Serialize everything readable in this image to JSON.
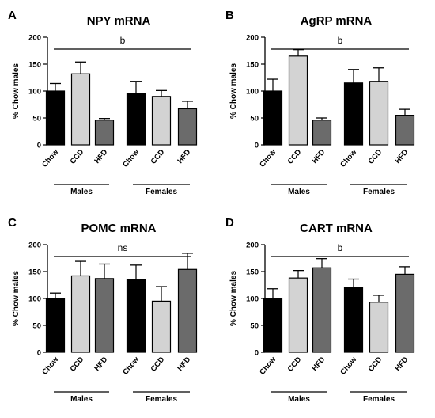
{
  "colors": {
    "chow": "#000000",
    "ccd": "#d3d3d3",
    "hfd": "#6b6b6b",
    "axis": "#000000"
  },
  "chart_data": [
    {
      "type": "bar",
      "panel_letter": "A",
      "title": "NPY mRNA",
      "ylabel": "% Chow males",
      "ylim": [
        0,
        200
      ],
      "yticks": [
        0,
        50,
        100,
        150,
        200
      ],
      "categories": [
        "Chow",
        "CCD",
        "HFD",
        "Chow",
        "CCD",
        "HFD"
      ],
      "groups": [
        "Males",
        "Females"
      ],
      "values": [
        100,
        132,
        46,
        95,
        90,
        67
      ],
      "errors": [
        14,
        22,
        3,
        23,
        11,
        14
      ],
      "significance": "b"
    },
    {
      "type": "bar",
      "panel_letter": "B",
      "title": "AgRP mRNA",
      "ylabel": "% Chow males",
      "ylim": [
        0,
        200
      ],
      "yticks": [
        0,
        50,
        100,
        150,
        200
      ],
      "categories": [
        "Chow",
        "CCD",
        "HFD",
        "Chow",
        "CCD",
        "HFD"
      ],
      "groups": [
        "Males",
        "Females"
      ],
      "values": [
        100,
        165,
        46,
        115,
        118,
        55
      ],
      "errors": [
        22,
        12,
        4,
        25,
        25,
        11
      ],
      "significance": "b"
    },
    {
      "type": "bar",
      "panel_letter": "C",
      "title": "POMC mRNA",
      "ylabel": "% Chow males",
      "ylim": [
        0,
        200
      ],
      "yticks": [
        0,
        50,
        100,
        150,
        200
      ],
      "categories": [
        "Chow",
        "CCD",
        "HFD",
        "Chow",
        "CCD",
        "HFD"
      ],
      "groups": [
        "Males",
        "Females"
      ],
      "values": [
        100,
        142,
        137,
        135,
        95,
        154
      ],
      "errors": [
        10,
        27,
        27,
        27,
        27,
        30
      ],
      "significance": "ns"
    },
    {
      "type": "bar",
      "panel_letter": "D",
      "title": "CART mRNA",
      "ylabel": "% Chow males",
      "ylim": [
        0,
        200
      ],
      "yticks": [
        0,
        50,
        100,
        150,
        200
      ],
      "categories": [
        "Chow",
        "CCD",
        "HFD",
        "Chow",
        "CCD",
        "HFD"
      ],
      "groups": [
        "Males",
        "Females"
      ],
      "values": [
        100,
        138,
        157,
        121,
        93,
        145
      ],
      "errors": [
        18,
        14,
        17,
        15,
        13,
        14
      ],
      "significance": "b"
    }
  ]
}
